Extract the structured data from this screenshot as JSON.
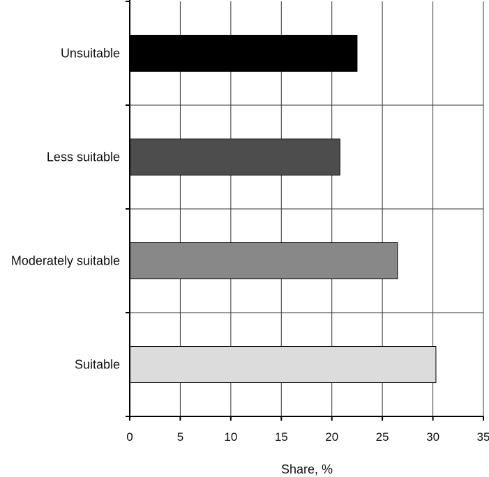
{
  "chart_data": {
    "type": "bar",
    "orientation": "horizontal",
    "title": "",
    "xlabel": "Share, %",
    "ylabel": "",
    "categories": [
      "Unsuitable",
      "Less suitable",
      "Moderately suitable",
      "Suitable"
    ],
    "values": [
      22.5,
      20.8,
      26.5,
      30.3
    ],
    "colors": [
      "#000000",
      "#4d4d4d",
      "#888888",
      "#dcdcdc"
    ],
    "xlim": [
      0,
      35
    ],
    "xticks": [
      0,
      5,
      10,
      15,
      20,
      25,
      30,
      35
    ],
    "grid": true,
    "legend": "none"
  }
}
